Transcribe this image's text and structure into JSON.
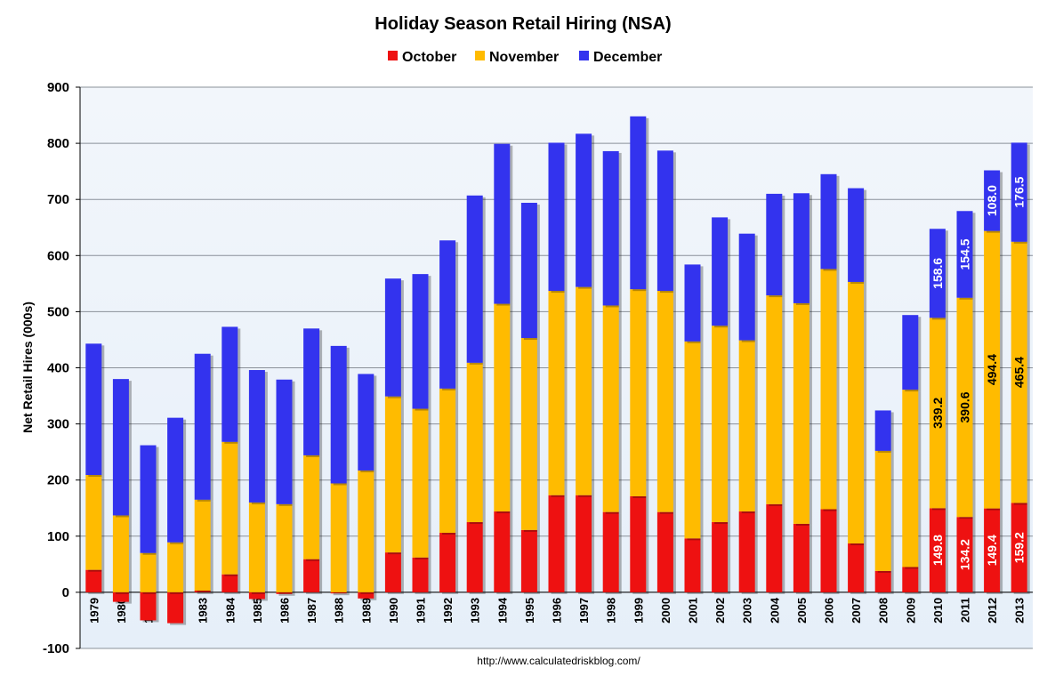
{
  "chart_data": {
    "type": "bar",
    "stacked": true,
    "title": "Holiday Season Retail Hiring (NSA)",
    "xlabel": "",
    "ylabel": "Net Retail Hires (000s)",
    "ylim": [
      -100,
      900
    ],
    "yticks": [
      -100,
      0,
      100,
      200,
      300,
      400,
      500,
      600,
      700,
      800,
      900
    ],
    "grid": true,
    "legend_position": "top-center",
    "source_note": "http://www.calculatedriskblog.com/",
    "categories": [
      "1979",
      "1980",
      "1981",
      "1982",
      "1983",
      "1984",
      "1985",
      "1986",
      "1987",
      "1988",
      "1989",
      "1990",
      "1991",
      "1992",
      "1993",
      "1994",
      "1995",
      "1996",
      "1997",
      "1998",
      "1999",
      "2000",
      "2001",
      "2002",
      "2003",
      "2004",
      "2005",
      "2006",
      "2007",
      "2008",
      "2009",
      "2010",
      "2011",
      "2012",
      "2013"
    ],
    "series": [
      {
        "name": "October",
        "color": "#ee1111",
        "values": [
          40,
          -17,
          -50,
          -55,
          3,
          32,
          -12,
          -3,
          59,
          -2,
          -11,
          71,
          62,
          106,
          125,
          144,
          111,
          173,
          173,
          143,
          171,
          143,
          96,
          125,
          144,
          157,
          122,
          148,
          87,
          38,
          45,
          149.8,
          134.2,
          149.4,
          159.2
        ]
      },
      {
        "name": "November",
        "color": "#ffbb00",
        "values": [
          169,
          137,
          70,
          89,
          162,
          236,
          160,
          157,
          185,
          194,
          217,
          278,
          265,
          257,
          284,
          370,
          342,
          364,
          371,
          368,
          369,
          394,
          351,
          350,
          305,
          372,
          393,
          428,
          466,
          214,
          316,
          339.2,
          390.6,
          494.4,
          465.4
        ]
      },
      {
        "name": "December",
        "color": "#3333ee",
        "values": [
          234,
          243,
          192,
          222,
          260,
          205,
          236,
          222,
          226,
          245,
          172,
          210,
          240,
          264,
          298,
          285,
          241,
          264,
          273,
          275,
          308,
          250,
          137,
          193,
          190,
          181,
          196,
          169,
          167,
          72,
          133,
          158.6,
          154.5,
          108.0,
          176.5
        ]
      }
    ],
    "data_labels": [
      {
        "category": "2010",
        "series": "October",
        "text": "149.8"
      },
      {
        "category": "2010",
        "series": "November",
        "text": "339.2"
      },
      {
        "category": "2010",
        "series": "December",
        "text": "158.6"
      },
      {
        "category": "2011",
        "series": "October",
        "text": "134.2"
      },
      {
        "category": "2011",
        "series": "November",
        "text": "390.6"
      },
      {
        "category": "2011",
        "series": "December",
        "text": "154.5"
      },
      {
        "category": "2012",
        "series": "October",
        "text": "149.4"
      },
      {
        "category": "2012",
        "series": "November",
        "text": "494.4"
      },
      {
        "category": "2012",
        "series": "December",
        "text": "108.0"
      },
      {
        "category": "2013",
        "series": "October",
        "text": "159.2"
      },
      {
        "category": "2013",
        "series": "November",
        "text": "465.4"
      },
      {
        "category": "2013",
        "series": "December",
        "text": "176.5"
      }
    ]
  }
}
